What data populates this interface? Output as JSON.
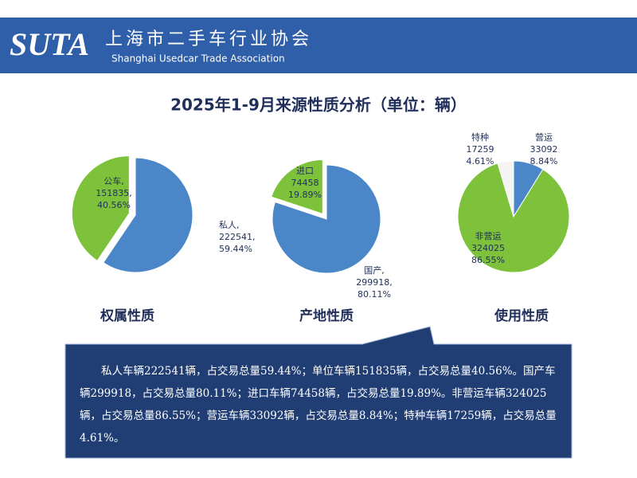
{
  "header": {
    "logo": "SUTA",
    "org_name": "上海市二手车行业协会",
    "org_name_en": "Shanghai Usedcar Trade Association"
  },
  "title": "2025年1-9月来源性质分析（单位：辆）",
  "chart_data": [
    {
      "type": "pie",
      "title": "权属性质",
      "categories": [
        "私人,",
        "公车,"
      ],
      "values": [
        222541,
        151835
      ],
      "value_labels": [
        "222541,",
        "151835,"
      ],
      "percent_labels": [
        "59.44%",
        "40.56%"
      ],
      "colors": [
        "#4a86c8",
        "#7dc23a"
      ],
      "exploded": 1
    },
    {
      "type": "pie",
      "title": "产地性质",
      "categories": [
        "国产,",
        "进口"
      ],
      "values": [
        299918,
        74458
      ],
      "value_labels": [
        "299918,",
        "74458"
      ],
      "percent_labels": [
        "80.11%",
        "19.89%"
      ],
      "colors": [
        "#4a86c8",
        "#7dc23a"
      ],
      "exploded": 1
    },
    {
      "type": "pie",
      "title": "使用性质",
      "categories": [
        "营运",
        "非营运",
        "特种"
      ],
      "values": [
        33092,
        324025,
        17259
      ],
      "percent_labels": [
        "8.84%",
        "86.55%",
        "4.61%"
      ],
      "colors": [
        "#4a86c8",
        "#7dc23a",
        "#f4f4f4"
      ]
    }
  ],
  "summary": "私人车辆222541辆，占交易总量59.44%；单位车辆151835辆，占交易总量40.56%。国产车辆299918，占交易总量80.11%；进口车辆74458辆，占交易总量19.89%。非营运车辆324025辆，占交易总量86.55%；营运车辆33092辆，占交易总量8.84%；特种车辆17259辆，占交易总量4.61%。"
}
